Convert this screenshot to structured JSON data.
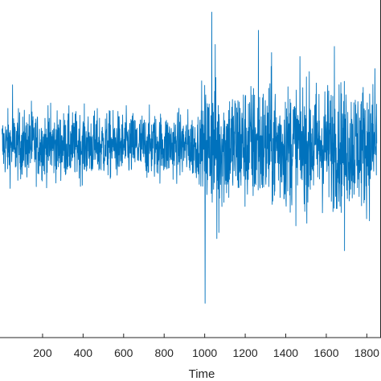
{
  "chart_data": {
    "type": "line",
    "title": "",
    "xlabel": "Time",
    "ylabel": "",
    "xlim": [
      -10,
      1870
    ],
    "ylim": [
      -0.95,
      0.72
    ],
    "grid": false,
    "legend": "none",
    "x_tick_labels": [
      "200",
      "400",
      "600",
      "800",
      "1000",
      "1200",
      "1400",
      "1600",
      "1800"
    ],
    "x_ticks": [
      200,
      400,
      600,
      800,
      1000,
      1200,
      1400,
      1600,
      1800
    ],
    "series": [
      {
        "color": "#0072BD",
        "n_points": 1850,
        "segments": [
          {
            "from": 0,
            "to": 999,
            "amplitude": 0.08
          },
          {
            "from": 999,
            "to": 1850,
            "amplitude": 0.15
          }
        ],
        "peaks": [
          {
            "x": 52,
            "y": 0.3
          },
          {
            "x": 145,
            "y": 0.22
          },
          {
            "x": 240,
            "y": 0.21
          },
          {
            "x": 985,
            "y": 0.32
          },
          {
            "x": 1002,
            "y": -0.78
          },
          {
            "x": 1035,
            "y": 0.66
          },
          {
            "x": 1052,
            "y": 0.5
          },
          {
            "x": 1265,
            "y": 0.57
          },
          {
            "x": 1330,
            "y": 0.46
          },
          {
            "x": 1640,
            "y": 0.49
          },
          {
            "x": 1840,
            "y": 0.38
          },
          {
            "x": 1690,
            "y": -0.52
          },
          {
            "x": 1070,
            "y": -0.43
          },
          {
            "x": 1060,
            "y": -0.46
          }
        ]
      }
    ]
  }
}
